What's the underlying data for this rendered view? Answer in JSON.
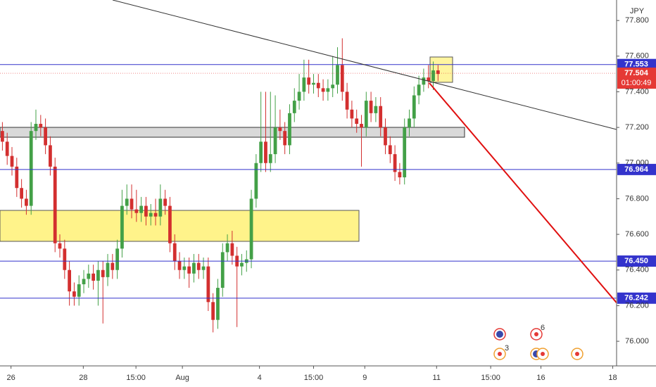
{
  "chart_data": {
    "type": "candlestick",
    "currency": "JPY",
    "open": [
      77.18,
      77.12,
      77.04,
      76.98,
      76.86,
      76.8,
      76.76,
      77.18,
      77.22,
      77.2,
      77.1,
      76.98,
      76.55,
      76.52,
      76.4,
      76.28,
      76.25,
      76.32,
      76.35,
      76.38,
      76.34,
      76.4,
      76.36,
      76.44,
      76.4,
      76.52,
      76.76,
      76.8,
      76.74,
      76.72,
      76.76,
      76.7,
      76.72,
      76.7,
      76.8,
      76.76,
      76.55,
      76.45,
      76.4,
      76.42,
      76.38,
      76.44,
      76.4,
      76.42,
      76.22,
      76.12,
      76.3,
      76.5,
      76.55,
      76.48,
      76.42,
      76.44,
      76.46,
      76.8,
      77.0,
      77.12,
      77.0,
      77.05,
      77.2,
      77.18,
      77.1,
      77.28,
      77.35,
      77.4,
      77.48,
      77.44,
      77.45,
      77.42,
      77.4,
      77.42,
      77.44,
      77.55,
      77.4,
      77.3,
      77.25,
      77.22,
      77.2,
      77.35,
      77.28,
      77.32,
      77.2,
      77.1,
      77.05,
      76.95,
      76.92,
      77.2,
      77.25,
      77.38,
      77.44,
      77.48,
      77.46,
      77.52
    ],
    "high": [
      77.23,
      77.17,
      77.09,
      77.03,
      76.91,
      76.85,
      77.23,
      77.3,
      77.27,
      77.25,
      77.15,
      77.03,
      76.6,
      76.57,
      76.45,
      76.33,
      76.37,
      76.4,
      76.43,
      76.43,
      76.45,
      76.45,
      76.49,
      76.49,
      76.57,
      76.85,
      76.88,
      76.88,
      76.85,
      76.81,
      76.81,
      76.77,
      76.8,
      76.88,
      76.85,
      76.81,
      76.6,
      76.5,
      76.47,
      76.47,
      76.49,
      76.49,
      76.47,
      76.47,
      76.27,
      76.35,
      76.55,
      76.6,
      76.62,
      76.53,
      76.49,
      76.51,
      76.85,
      77.05,
      77.4,
      77.4,
      77.4,
      77.38,
      77.3,
      77.23,
      77.33,
      77.42,
      77.5,
      77.58,
      77.58,
      77.5,
      77.5,
      77.47,
      77.47,
      77.6,
      77.65,
      77.7,
      77.45,
      77.35,
      77.3,
      77.27,
      77.4,
      77.4,
      77.37,
      77.37,
      77.25,
      77.15,
      77.1,
      77.0,
      77.25,
      77.3,
      77.43,
      77.49,
      77.53,
      77.55,
      77.57,
      77.55
    ],
    "low": [
      77.07,
      76.99,
      76.93,
      76.81,
      76.75,
      76.71,
      76.71,
      77.13,
      77.15,
      77.05,
      76.93,
      76.5,
      76.47,
      76.35,
      76.2,
      76.2,
      76.2,
      76.27,
      76.3,
      76.29,
      76.2,
      76.1,
      76.31,
      76.35,
      76.35,
      76.47,
      76.71,
      76.69,
      76.67,
      76.67,
      76.65,
      76.65,
      76.65,
      76.65,
      76.71,
      76.5,
      76.4,
      76.35,
      76.35,
      76.3,
      76.33,
      76.35,
      76.35,
      76.17,
      76.05,
      76.07,
      76.25,
      76.45,
      76.43,
      76.08,
      76.37,
      76.39,
      76.41,
      76.75,
      76.95,
      76.95,
      76.95,
      77.0,
      77.13,
      77.05,
      77.05,
      77.23,
      77.3,
      77.35,
      77.39,
      77.39,
      77.37,
      77.35,
      77.35,
      77.37,
      77.39,
      77.35,
      77.25,
      77.2,
      77.17,
      76.98,
      77.15,
      77.23,
      77.23,
      77.15,
      77.05,
      77.0,
      76.9,
      76.88,
      76.88,
      77.15,
      77.2,
      77.33,
      77.4,
      77.42,
      77.41,
      77.46
    ],
    "close": [
      77.12,
      77.04,
      76.98,
      76.86,
      76.8,
      76.76,
      77.18,
      77.22,
      77.2,
      77.1,
      76.98,
      76.55,
      76.52,
      76.4,
      76.28,
      76.25,
      76.32,
      76.35,
      76.38,
      76.34,
      76.4,
      76.36,
      76.44,
      76.4,
      76.52,
      76.76,
      76.8,
      76.74,
      76.72,
      76.76,
      76.7,
      76.72,
      76.7,
      76.8,
      76.76,
      76.55,
      76.45,
      76.4,
      76.42,
      76.38,
      76.44,
      76.4,
      76.42,
      76.22,
      76.12,
      76.3,
      76.5,
      76.55,
      76.48,
      76.42,
      76.44,
      76.46,
      76.8,
      77.0,
      77.12,
      77.0,
      77.05,
      77.2,
      77.18,
      77.1,
      77.28,
      77.35,
      77.4,
      77.48,
      77.44,
      77.45,
      77.42,
      77.4,
      77.42,
      77.44,
      77.55,
      77.4,
      77.3,
      77.25,
      77.22,
      77.2,
      77.35,
      77.28,
      77.32,
      77.2,
      77.1,
      77.05,
      76.95,
      76.92,
      77.2,
      77.25,
      77.38,
      77.44,
      77.48,
      77.46,
      77.52,
      77.5
    ],
    "up_color": "#43a047",
    "down_color": "#d32f2f",
    "xlim": [
      -0.5,
      128.3
    ],
    "xticks": [
      {
        "value": 1.8,
        "label": "26"
      },
      {
        "value": 16.9,
        "label": "28"
      },
      {
        "value": 27.9,
        "label": "15:00"
      },
      {
        "value": 37.6,
        "label": "Aug"
      },
      {
        "value": 53.7,
        "label": "4"
      },
      {
        "value": 65,
        "label": "15:00"
      },
      {
        "value": 75.7,
        "label": "9"
      },
      {
        "value": 90.7,
        "label": "11"
      },
      {
        "value": 102,
        "label": "15:00"
      },
      {
        "value": 112.5,
        "label": "16"
      },
      {
        "value": 127.5,
        "label": "18"
      }
    ],
    "ylim": [
      75.862,
      77.915
    ],
    "yticks": [
      {
        "value": 76,
        "label": "76.000"
      },
      {
        "value": 76.2,
        "label": "76.200"
      },
      {
        "value": 76.4,
        "label": "76.400"
      },
      {
        "value": 76.6,
        "label": "76.600"
      },
      {
        "value": 76.8,
        "label": "76.800"
      },
      {
        "value": 77,
        "label": "77.000"
      },
      {
        "value": 77.2,
        "label": "77.200"
      },
      {
        "value": 77.4,
        "label": "77.400"
      },
      {
        "value": 77.6,
        "label": "77.600"
      },
      {
        "value": 77.8,
        "label": "77.800"
      }
    ],
    "grid": false,
    "price_lines": [
      {
        "value": 77.553,
        "color": "#3333cc"
      },
      {
        "value": 76.964,
        "color": "#3333cc"
      },
      {
        "value": {
          "value": 76.45,
          "label": "76.450"
        },
        "color": "#3333cc"
      },
      {
        "value": 76.242,
        "color": "#3333cc"
      }
    ],
    "last_price": {
      "value": 77.504,
      "countdown": "01:00:49",
      "color": "#e53935"
    },
    "events": [
      "6",
      "3"
    ]
  }
}
